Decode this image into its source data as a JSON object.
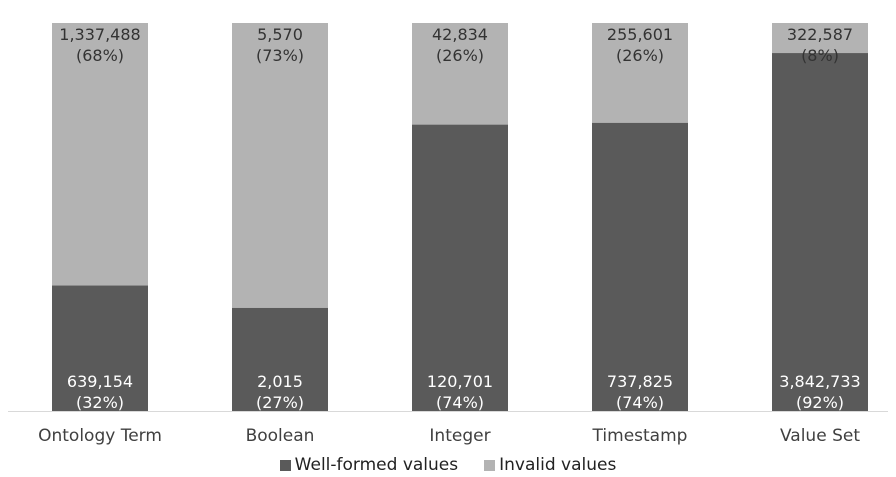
{
  "chart_data": {
    "type": "bar",
    "stacked": true,
    "normalized": true,
    "categories": [
      "Ontology Term",
      "Boolean",
      "Integer",
      "Timestamp",
      "Value Set"
    ],
    "series": [
      {
        "name": "Well-formed values",
        "color": "#5a5a5a",
        "values": [
          639154,
          2015,
          120701,
          737825,
          3842733
        ],
        "percent_labels": [
          "(32%)",
          "(27%)",
          "(74%)",
          "(74%)",
          "(92%)"
        ],
        "value_labels": [
          "639,154",
          "2,015",
          "120,701",
          "737,825",
          "3,842,733"
        ]
      },
      {
        "name": "Invalid values",
        "color": "#b3b3b3",
        "values": [
          1337488,
          5570,
          42834,
          255601,
          322587
        ],
        "percent_labels": [
          "(68%)",
          "(73%)",
          "(26%)",
          "(26%)",
          "(8%)"
        ],
        "value_labels": [
          "1,337,488",
          "5,570",
          "42,834",
          "255,601",
          "322,587"
        ]
      }
    ],
    "ylim": [
      0,
      100
    ],
    "grid": false,
    "legend_position": "bottom"
  }
}
